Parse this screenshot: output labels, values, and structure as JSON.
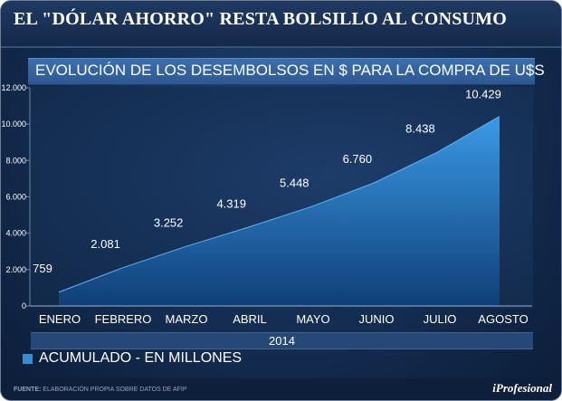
{
  "header": {
    "title": "EL \"DÓLAR AHORRO\" RESTA BOLSILLO AL CONSUMO"
  },
  "footer": {
    "source_label": "FUENTE:",
    "source_text": "ELABORACIÓN PROPIA SOBRE DATOS DE AFIP",
    "brand": "iProfesional"
  },
  "colors": {
    "area_top": "#3a9ae6",
    "area_bottom": "#0f3f78",
    "legend": "#2f8fd8"
  },
  "chart_data": {
    "type": "area",
    "title": "EVOLUCIÓN DE LOS DESEMBOLSOS EN $ PARA LA COMPRA DE U$S",
    "xlabel": "2014",
    "ylabel": "",
    "categories": [
      "ENERO",
      "FEBRERO",
      "MARZO",
      "ABRIL",
      "MAYO",
      "JUNIO",
      "JULIO",
      "AGOSTO"
    ],
    "series": [
      {
        "name": "ACUMULADO - EN MILLONES",
        "values": [
          759,
          2081,
          3252,
          4319,
          5448,
          6760,
          8438,
          10429
        ]
      }
    ],
    "data_labels": [
      "759",
      "2.081",
      "3.252",
      "4.319",
      "5.448",
      "6.760",
      "8.438",
      "10.429"
    ],
    "ylim": [
      0,
      12000
    ],
    "yticks": [
      0,
      2000,
      4000,
      6000,
      8000,
      10000,
      12000
    ],
    "ytick_labels": [
      "0",
      "2.000",
      "4.000",
      "6.000",
      "8.000",
      "10.000",
      "12.000"
    ],
    "legend": "bottom-left",
    "grid": false
  }
}
